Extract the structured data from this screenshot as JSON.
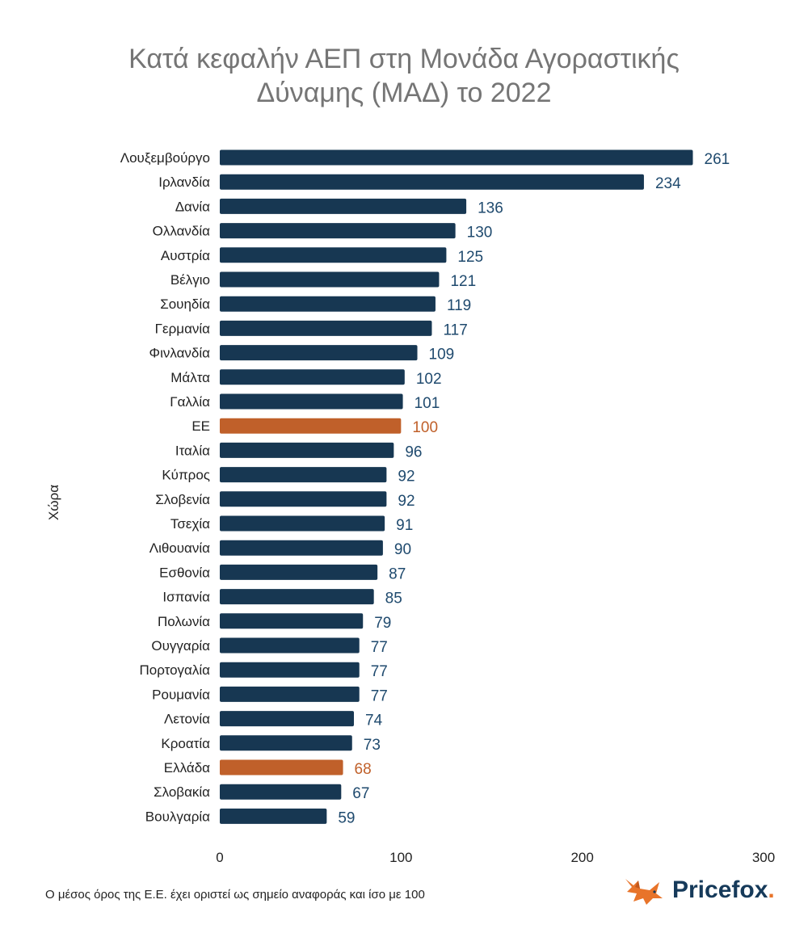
{
  "chart_data": {
    "type": "bar",
    "orientation": "horizontal",
    "title": [
      "Κατά κεφαλήν ΑΕΠ στη Μονάδα Αγοραστικής",
      "Δύναμης (ΜΑΔ) το 2022"
    ],
    "ylabel": "Χώρα",
    "xlabel": "",
    "xlim": [
      0,
      300
    ],
    "x_ticks": [
      0,
      100,
      200,
      300
    ],
    "grid": false,
    "legend": "none",
    "colors": {
      "default": "#173752",
      "highlight": "#c0602a",
      "label_default": "#1f4a6e",
      "label_highlight": "#c0602a"
    },
    "categories": [
      "Λουξεμβούργο",
      "Ιρλανδία",
      "Δανία",
      "Ολλανδία",
      "Αυστρία",
      "Βέλγιο",
      "Σουηδία",
      "Γερμανία",
      "Φινλανδία",
      "Μάλτα",
      "Γαλλία",
      "ΕΕ",
      "Ιταλία",
      "Κύπρος",
      "Σλοβενία",
      "Τσεχία",
      "Λιθουανία",
      "Εσθονία",
      "Ισπανία",
      "Πολωνία",
      "Ουγγαρία",
      "Πορτογαλία",
      "Ρουμανία",
      "Λετονία",
      "Κροατία",
      "Ελλάδα",
      "Σλοβακία",
      "Βουλγαρία"
    ],
    "values": [
      261,
      234,
      136,
      130,
      125,
      121,
      119,
      117,
      109,
      102,
      101,
      100,
      96,
      92,
      92,
      91,
      90,
      87,
      85,
      79,
      77,
      77,
      77,
      74,
      73,
      68,
      67,
      59
    ],
    "highlighted": [
      "ΕΕ",
      "Ελλάδα"
    ]
  },
  "footnote": "Ο μέσος όρος της Ε.Ε. έχει οριστεί ως σημείο αναφοράς και ίσο με 100",
  "brand": {
    "name": "Pricefox",
    "dot": ".",
    "logo_icon": "fox-icon"
  }
}
